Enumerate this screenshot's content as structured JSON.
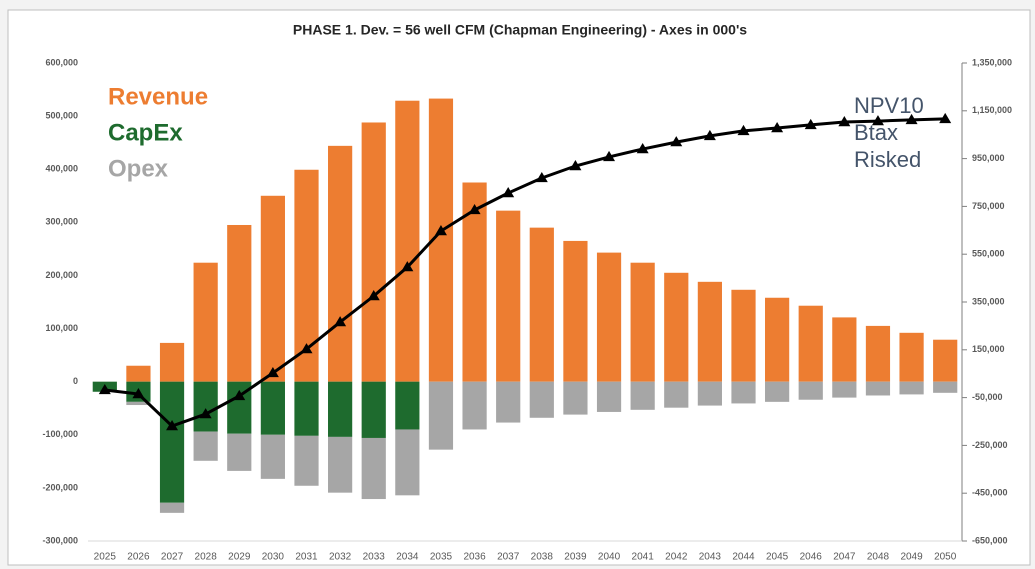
{
  "chart_data": {
    "type": "bar",
    "title": "PHASE 1. Dev. = 56 well CFM (Chapman Engineering) - Axes in 000's",
    "categories": [
      "2025",
      "2026",
      "2027",
      "2028",
      "2029",
      "2030",
      "2031",
      "2032",
      "2033",
      "2034",
      "2035",
      "2036",
      "2037",
      "2038",
      "2039",
      "2040",
      "2041",
      "2042",
      "2043",
      "2044",
      "2045",
      "2046",
      "2047",
      "2048",
      "2049",
      "2050"
    ],
    "series": [
      {
        "name": "Revenue",
        "color": "#ed7d31",
        "values": [
          0,
          30000,
          73000,
          224000,
          295000,
          350000,
          399000,
          444000,
          488000,
          529000,
          533000,
          375000,
          322000,
          290000,
          265000,
          243000,
          224000,
          205000,
          188000,
          173000,
          158000,
          143000,
          121000,
          105000,
          92000,
          79000
        ]
      },
      {
        "name": "CapEx",
        "color": "#1e6b2e",
        "values": [
          -19000,
          -38000,
          -228000,
          -94000,
          -98000,
          -100000,
          -102000,
          -104000,
          -106000,
          -90000,
          0,
          0,
          0,
          0,
          0,
          0,
          0,
          0,
          0,
          0,
          0,
          0,
          0,
          0,
          0,
          0
        ]
      },
      {
        "name": "Opex",
        "color": "#a6a6a6",
        "values": [
          0,
          -6000,
          -19000,
          -55000,
          -70000,
          -83000,
          -94000,
          -105000,
          -115000,
          -124000,
          -128000,
          -90000,
          -77000,
          -68000,
          -62000,
          -57000,
          -53000,
          -49000,
          -45000,
          -41000,
          -38000,
          -34000,
          -30000,
          -26000,
          -24000,
          -21000
        ]
      },
      {
        "name": "NPV10 Btax Risked",
        "color": "#000000",
        "type": "line",
        "axis": "y2",
        "values": [
          -18000,
          -35000,
          -169000,
          -119000,
          -43000,
          53000,
          153000,
          266000,
          375000,
          496000,
          647000,
          735000,
          806000,
          869000,
          919000,
          957000,
          990000,
          1019000,
          1045000,
          1066000,
          1078000,
          1091000,
          1103000,
          1107000,
          1112000,
          1116000
        ]
      }
    ],
    "ylim": [
      -300000,
      600000
    ],
    "yticks": [
      {
        "value": -300000,
        "label": "-300,000"
      },
      {
        "value": -200000,
        "label": "-200,000"
      },
      {
        "value": -100000,
        "label": "-100,000"
      },
      0,
      {
        "value": 100000,
        "label": "100,000"
      },
      {
        "value": 200000,
        "label": "200,000"
      },
      {
        "value": 300000,
        "label": "300,000"
      },
      {
        "value": 400000,
        "label": "400,000"
      },
      {
        "value": 500000,
        "label": "500,000"
      },
      {
        "value": 600000,
        "label": "600,000"
      }
    ],
    "y2lim": [
      -650000,
      1350000
    ],
    "y2ticks": [
      {
        "value": -650000,
        "label": "-650,000"
      },
      {
        "value": -450000,
        "label": "-450,000"
      },
      {
        "value": -250000,
        "label": "-250,000"
      },
      {
        "value": -50000,
        "label": "-50,000"
      },
      {
        "value": 150000,
        "label": "150,000"
      },
      {
        "value": 350000,
        "label": "350,000"
      },
      {
        "value": 550000,
        "label": "550,000"
      },
      {
        "value": 750000,
        "label": "750,000"
      },
      {
        "value": 950000,
        "label": "950,000"
      },
      {
        "value": 1150000,
        "label": "1,150,000"
      },
      {
        "value": 1350000,
        "label": "1,350,000"
      }
    ],
    "grid": false
  }
}
